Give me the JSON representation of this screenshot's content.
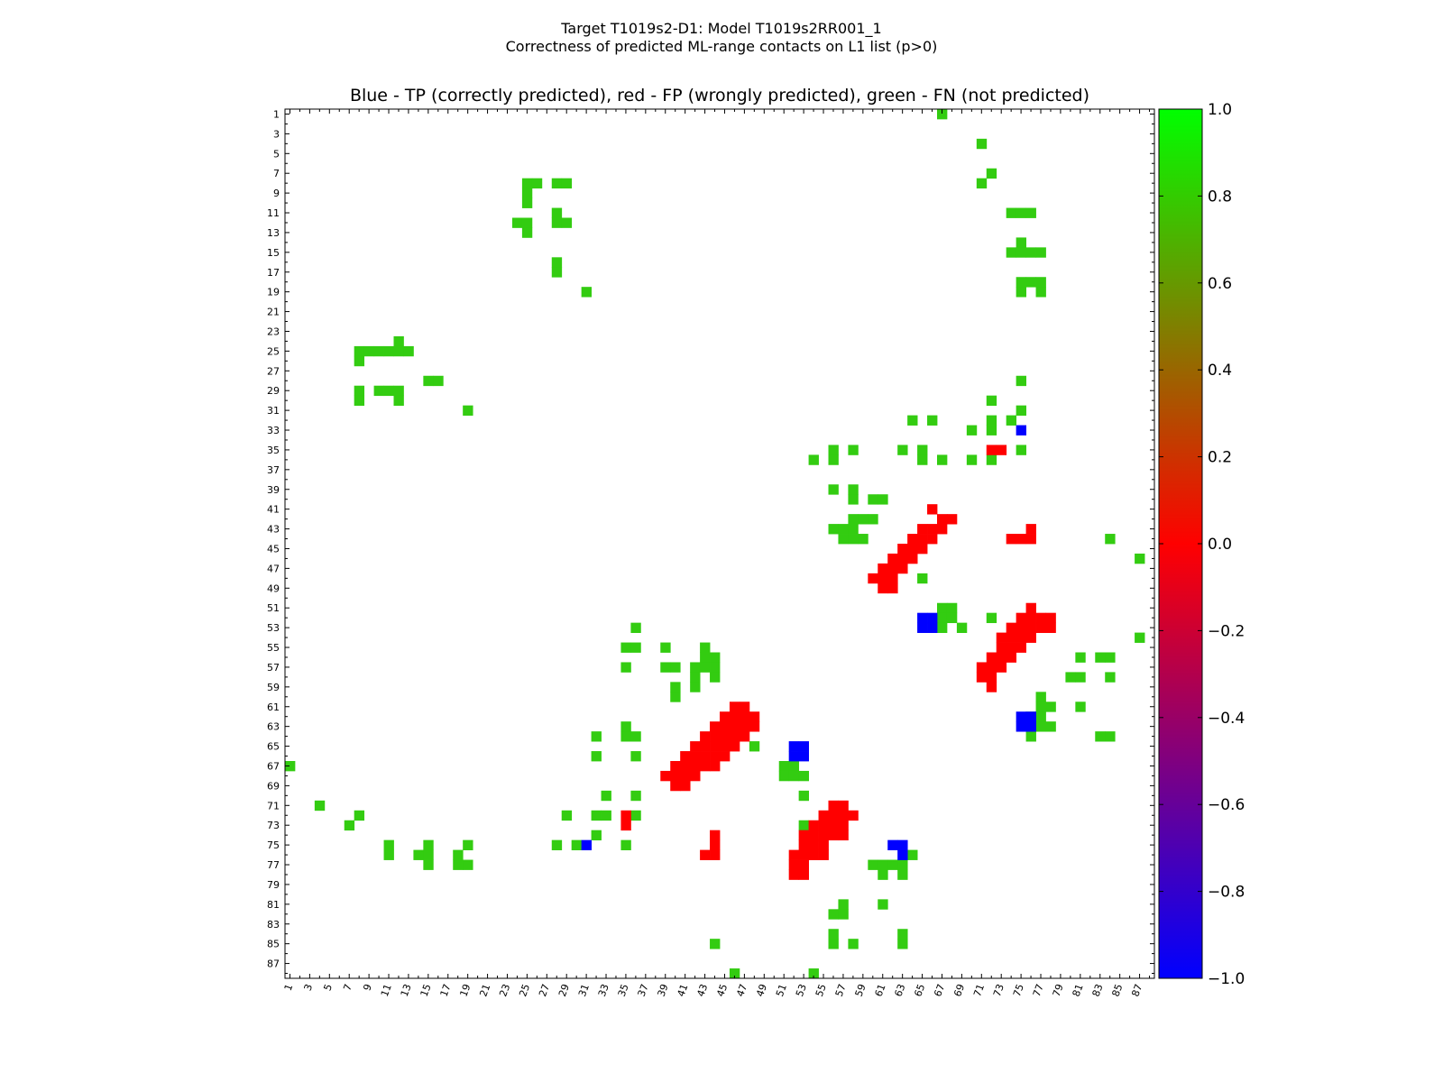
{
  "figure": {
    "suptitle_line1": "Target T1019s2-D1: Model T1019s2RR001_1",
    "suptitle_line2": "Correctness of predicted ML-range contacts on L1 list (p>0)"
  },
  "colors": {
    "tp": "#0000ff",
    "fp": "#ff0000",
    "fn": "#33cc11",
    "colormap": [
      "#0000ff",
      "#ff0000",
      "#00ff00"
    ]
  },
  "chart_data": {
    "type": "heatmap",
    "title": "Blue - TP (correctly predicted), red - FP (wrongly predicted), green - FN (not predicted)",
    "n": 88,
    "x_ticks": [
      "1",
      "3",
      "5",
      "7",
      "9",
      "11",
      "13",
      "15",
      "17",
      "19",
      "21",
      "23",
      "25",
      "27",
      "29",
      "31",
      "33",
      "35",
      "37",
      "39",
      "41",
      "43",
      "45",
      "47",
      "49",
      "51",
      "53",
      "55",
      "57",
      "59",
      "61",
      "63",
      "65",
      "67",
      "69",
      "71",
      "73",
      "75",
      "77",
      "79",
      "81",
      "83",
      "85",
      "87"
    ],
    "y_ticks": [
      "1",
      "3",
      "5",
      "7",
      "9",
      "11",
      "13",
      "15",
      "17",
      "19",
      "21",
      "23",
      "25",
      "27",
      "29",
      "31",
      "33",
      "35",
      "37",
      "39",
      "41",
      "43",
      "45",
      "47",
      "49",
      "51",
      "53",
      "55",
      "57",
      "59",
      "61",
      "63",
      "65",
      "67",
      "69",
      "71",
      "73",
      "75",
      "77",
      "79",
      "81",
      "83",
      "85",
      "87"
    ],
    "colorbar": {
      "range": [
        -1.0,
        1.0
      ],
      "ticks": [
        "1.0",
        "0.8",
        "0.6",
        "0.4",
        "0.2",
        "0.0",
        "−0.2",
        "−0.4",
        "−0.6",
        "−0.8",
        "−1.0"
      ]
    },
    "cells": {
      "tp": [
        [
          75,
          33
        ],
        [
          65,
          52
        ],
        [
          66,
          52
        ],
        [
          65,
          53
        ],
        [
          66,
          53
        ],
        [
          52,
          65
        ],
        [
          53,
          65
        ],
        [
          52,
          66
        ],
        [
          53,
          66
        ],
        [
          62,
          75
        ],
        [
          63,
          75
        ],
        [
          63,
          76
        ],
        [
          31,
          75
        ],
        [
          75,
          62
        ],
        [
          76,
          62
        ],
        [
          75,
          63
        ],
        [
          76,
          63
        ]
      ],
      "fp": [
        [
          72,
          35
        ],
        [
          73,
          35
        ],
        [
          66,
          41
        ],
        [
          67,
          42
        ],
        [
          68,
          42
        ],
        [
          65,
          43
        ],
        [
          66,
          43
        ],
        [
          67,
          43
        ],
        [
          64,
          44
        ],
        [
          65,
          44
        ],
        [
          66,
          44
        ],
        [
          63,
          45
        ],
        [
          64,
          45
        ],
        [
          65,
          45
        ],
        [
          62,
          46
        ],
        [
          63,
          46
        ],
        [
          64,
          46
        ],
        [
          61,
          47
        ],
        [
          62,
          47
        ],
        [
          63,
          47
        ],
        [
          60,
          48
        ],
        [
          61,
          48
        ],
        [
          62,
          48
        ],
        [
          61,
          49
        ],
        [
          62,
          49
        ],
        [
          76,
          43
        ],
        [
          74,
          44
        ],
        [
          75,
          44
        ],
        [
          76,
          44
        ],
        [
          76,
          51
        ],
        [
          75,
          52
        ],
        [
          76,
          52
        ],
        [
          77,
          52
        ],
        [
          78,
          52
        ],
        [
          74,
          53
        ],
        [
          75,
          53
        ],
        [
          76,
          53
        ],
        [
          77,
          53
        ],
        [
          78,
          53
        ],
        [
          73,
          54
        ],
        [
          74,
          54
        ],
        [
          75,
          54
        ],
        [
          76,
          54
        ],
        [
          73,
          55
        ],
        [
          74,
          55
        ],
        [
          75,
          55
        ],
        [
          72,
          56
        ],
        [
          73,
          56
        ],
        [
          74,
          56
        ],
        [
          71,
          57
        ],
        [
          72,
          57
        ],
        [
          73,
          57
        ],
        [
          71,
          58
        ],
        [
          72,
          58
        ],
        [
          72,
          59
        ],
        [
          46,
          61
        ],
        [
          47,
          61
        ],
        [
          45,
          62
        ],
        [
          46,
          62
        ],
        [
          47,
          62
        ],
        [
          48,
          62
        ],
        [
          44,
          63
        ],
        [
          45,
          63
        ],
        [
          46,
          63
        ],
        [
          47,
          63
        ],
        [
          48,
          63
        ],
        [
          43,
          64
        ],
        [
          44,
          64
        ],
        [
          45,
          64
        ],
        [
          46,
          64
        ],
        [
          47,
          64
        ],
        [
          42,
          65
        ],
        [
          43,
          65
        ],
        [
          44,
          65
        ],
        [
          45,
          65
        ],
        [
          46,
          65
        ],
        [
          41,
          66
        ],
        [
          42,
          66
        ],
        [
          43,
          66
        ],
        [
          44,
          66
        ],
        [
          45,
          66
        ],
        [
          40,
          67
        ],
        [
          41,
          67
        ],
        [
          42,
          67
        ],
        [
          43,
          67
        ],
        [
          44,
          67
        ],
        [
          39,
          68
        ],
        [
          40,
          68
        ],
        [
          41,
          68
        ],
        [
          42,
          68
        ],
        [
          40,
          69
        ],
        [
          41,
          69
        ],
        [
          35,
          72
        ],
        [
          35,
          73
        ],
        [
          44,
          74
        ],
        [
          44,
          75
        ],
        [
          43,
          76
        ],
        [
          44,
          76
        ],
        [
          56,
          71
        ],
        [
          57,
          71
        ],
        [
          55,
          72
        ],
        [
          56,
          72
        ],
        [
          57,
          72
        ],
        [
          58,
          72
        ],
        [
          54,
          73
        ],
        [
          55,
          73
        ],
        [
          56,
          73
        ],
        [
          57,
          73
        ],
        [
          53,
          74
        ],
        [
          54,
          74
        ],
        [
          55,
          74
        ],
        [
          56,
          74
        ],
        [
          57,
          74
        ],
        [
          53,
          75
        ],
        [
          54,
          75
        ],
        [
          55,
          75
        ],
        [
          52,
          76
        ],
        [
          53,
          76
        ],
        [
          54,
          76
        ],
        [
          55,
          76
        ],
        [
          52,
          77
        ],
        [
          53,
          77
        ],
        [
          52,
          78
        ],
        [
          53,
          78
        ]
      ],
      "fn": [
        [
          67,
          1
        ],
        [
          71,
          4
        ],
        [
          72,
          7
        ],
        [
          71,
          8
        ],
        [
          25,
          8
        ],
        [
          26,
          8
        ],
        [
          28,
          8
        ],
        [
          29,
          8
        ],
        [
          25,
          9
        ],
        [
          25,
          10
        ],
        [
          28,
          11
        ],
        [
          74,
          11
        ],
        [
          75,
          11
        ],
        [
          76,
          11
        ],
        [
          24,
          12
        ],
        [
          25,
          12
        ],
        [
          28,
          12
        ],
        [
          29,
          12
        ],
        [
          25,
          13
        ],
        [
          75,
          14
        ],
        [
          74,
          15
        ],
        [
          75,
          15
        ],
        [
          76,
          15
        ],
        [
          77,
          15
        ],
        [
          28,
          16
        ],
        [
          28,
          17
        ],
        [
          75,
          18
        ],
        [
          76,
          18
        ],
        [
          77,
          18
        ],
        [
          75,
          19
        ],
        [
          77,
          19
        ],
        [
          31,
          19
        ],
        [
          12,
          24
        ],
        [
          8,
          25
        ],
        [
          9,
          25
        ],
        [
          10,
          25
        ],
        [
          11,
          25
        ],
        [
          12,
          25
        ],
        [
          13,
          25
        ],
        [
          8,
          26
        ],
        [
          75,
          28
        ],
        [
          8,
          29
        ],
        [
          10,
          29
        ],
        [
          11,
          29
        ],
        [
          12,
          29
        ],
        [
          15,
          28
        ],
        [
          16,
          28
        ],
        [
          8,
          30
        ],
        [
          12,
          30
        ],
        [
          72,
          30
        ],
        [
          75,
          31
        ],
        [
          19,
          31
        ],
        [
          64,
          32
        ],
        [
          66,
          32
        ],
        [
          72,
          32
        ],
        [
          74,
          32
        ],
        [
          70,
          33
        ],
        [
          72,
          33
        ],
        [
          56,
          35
        ],
        [
          58,
          35
        ],
        [
          63,
          35
        ],
        [
          65,
          35
        ],
        [
          75,
          35
        ],
        [
          54,
          36
        ],
        [
          56,
          36
        ],
        [
          65,
          36
        ],
        [
          67,
          36
        ],
        [
          70,
          36
        ],
        [
          72,
          36
        ],
        [
          56,
          39
        ],
        [
          58,
          39
        ],
        [
          58,
          40
        ],
        [
          60,
          40
        ],
        [
          61,
          40
        ],
        [
          58,
          42
        ],
        [
          59,
          42
        ],
        [
          60,
          42
        ],
        [
          56,
          43
        ],
        [
          57,
          43
        ],
        [
          58,
          43
        ],
        [
          57,
          44
        ],
        [
          58,
          44
        ],
        [
          59,
          44
        ],
        [
          84,
          44
        ],
        [
          87,
          46
        ],
        [
          65,
          48
        ],
        [
          67,
          51
        ],
        [
          68,
          51
        ],
        [
          67,
          52
        ],
        [
          68,
          52
        ],
        [
          72,
          52
        ],
        [
          67,
          53
        ],
        [
          69,
          53
        ],
        [
          36,
          53
        ],
        [
          87,
          54
        ],
        [
          35,
          55
        ],
        [
          36,
          55
        ],
        [
          39,
          55
        ],
        [
          43,
          55
        ],
        [
          43,
          56
        ],
        [
          44,
          56
        ],
        [
          81,
          56
        ],
        [
          83,
          56
        ],
        [
          84,
          56
        ],
        [
          35,
          57
        ],
        [
          39,
          57
        ],
        [
          40,
          57
        ],
        [
          42,
          57
        ],
        [
          43,
          57
        ],
        [
          44,
          57
        ],
        [
          42,
          58
        ],
        [
          44,
          58
        ],
        [
          80,
          58
        ],
        [
          81,
          58
        ],
        [
          84,
          58
        ],
        [
          40,
          59
        ],
        [
          42,
          59
        ],
        [
          40,
          60
        ],
        [
          77,
          60
        ],
        [
          77,
          61
        ],
        [
          78,
          61
        ],
        [
          81,
          61
        ],
        [
          35,
          63
        ],
        [
          77,
          62
        ],
        [
          76,
          62
        ],
        [
          77,
          63
        ],
        [
          78,
          63
        ],
        [
          83,
          64
        ],
        [
          84,
          64
        ],
        [
          32,
          64
        ],
        [
          35,
          64
        ],
        [
          36,
          64
        ],
        [
          48,
          65
        ],
        [
          76,
          64
        ],
        [
          32,
          66
        ],
        [
          36,
          66
        ],
        [
          51,
          67
        ],
        [
          52,
          67
        ],
        [
          51,
          68
        ],
        [
          52,
          68
        ],
        [
          53,
          68
        ],
        [
          1,
          67
        ],
        [
          33,
          70
        ],
        [
          36,
          70
        ],
        [
          53,
          70
        ],
        [
          4,
          71
        ],
        [
          8,
          72
        ],
        [
          29,
          72
        ],
        [
          32,
          72
        ],
        [
          33,
          72
        ],
        [
          36,
          72
        ],
        [
          7,
          73
        ],
        [
          53,
          73
        ],
        [
          32,
          74
        ],
        [
          11,
          75
        ],
        [
          15,
          75
        ],
        [
          19,
          75
        ],
        [
          28,
          75
        ],
        [
          30,
          75
        ],
        [
          35,
          75
        ],
        [
          11,
          76
        ],
        [
          14,
          76
        ],
        [
          15,
          76
        ],
        [
          18,
          76
        ],
        [
          64,
          76
        ],
        [
          15,
          77
        ],
        [
          18,
          77
        ],
        [
          19,
          77
        ],
        [
          60,
          77
        ],
        [
          61,
          77
        ],
        [
          62,
          77
        ],
        [
          63,
          77
        ],
        [
          61,
          78
        ],
        [
          63,
          78
        ],
        [
          57,
          81
        ],
        [
          57,
          82
        ],
        [
          56,
          82
        ],
        [
          61,
          81
        ],
        [
          56,
          84
        ],
        [
          56,
          85
        ],
        [
          58,
          85
        ],
        [
          63,
          84
        ],
        [
          63,
          85
        ],
        [
          44,
          85
        ],
        [
          46,
          88
        ],
        [
          54,
          88
        ]
      ]
    }
  }
}
